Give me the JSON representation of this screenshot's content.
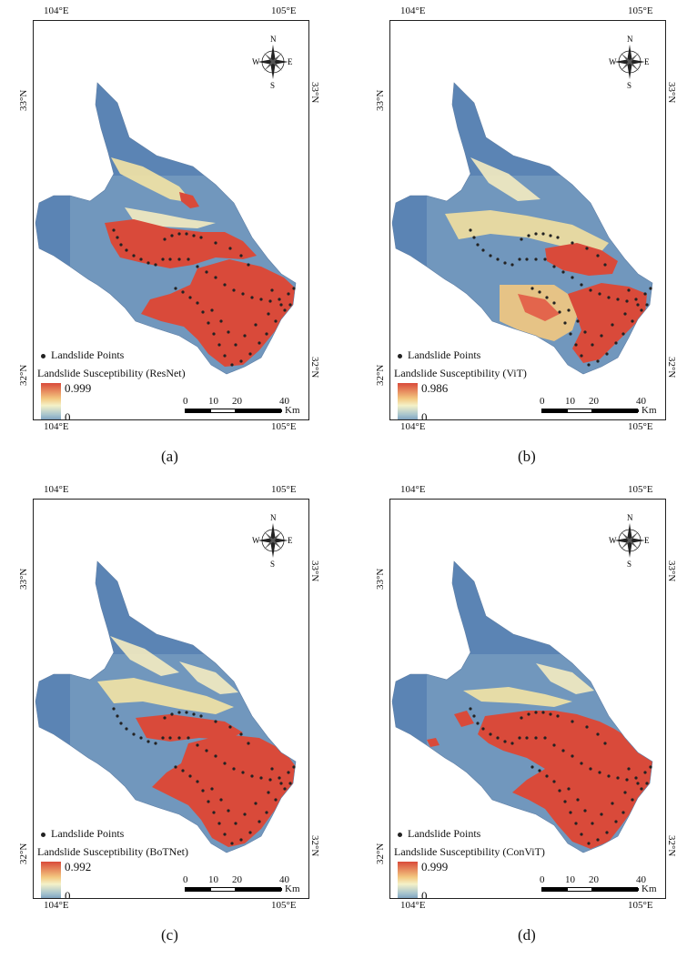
{
  "panels": [
    {
      "id": "a",
      "caption": "(a)",
      "legend_title": "Landslide Susceptibility (ResNet)",
      "max": "0.999",
      "min": "0",
      "pattern": "resnet"
    },
    {
      "id": "b",
      "caption": "(b)",
      "legend_title": "Landslide Susceptibility (ViT)",
      "max": "0.986",
      "min": "0",
      "pattern": "vit"
    },
    {
      "id": "c",
      "caption": "(c)",
      "legend_title": "Landslide Susceptibility (BoTNet)",
      "max": "0.992",
      "min": "0",
      "pattern": "botnet"
    },
    {
      "id": "d",
      "caption": "(d)",
      "legend_title": "Landslide Susceptibility (ConViT)",
      "max": "0.999",
      "min": "0",
      "pattern": "convit"
    }
  ],
  "common": {
    "lon_left": "104°E",
    "lon_right": "105°E",
    "lat_top": "33°N",
    "lat_bottom": "32°N",
    "points_label": "Landslide Points",
    "scale_labels": [
      "0",
      "10",
      "20",
      "40"
    ],
    "scale_unit": "Km",
    "compass": {
      "n": "N",
      "s": "S",
      "e": "E",
      "w": "W"
    }
  },
  "colors": {
    "low": "#5b84b4",
    "mid": "#f4f1c8",
    "high": "#d94a3a",
    "points": "#222222"
  }
}
